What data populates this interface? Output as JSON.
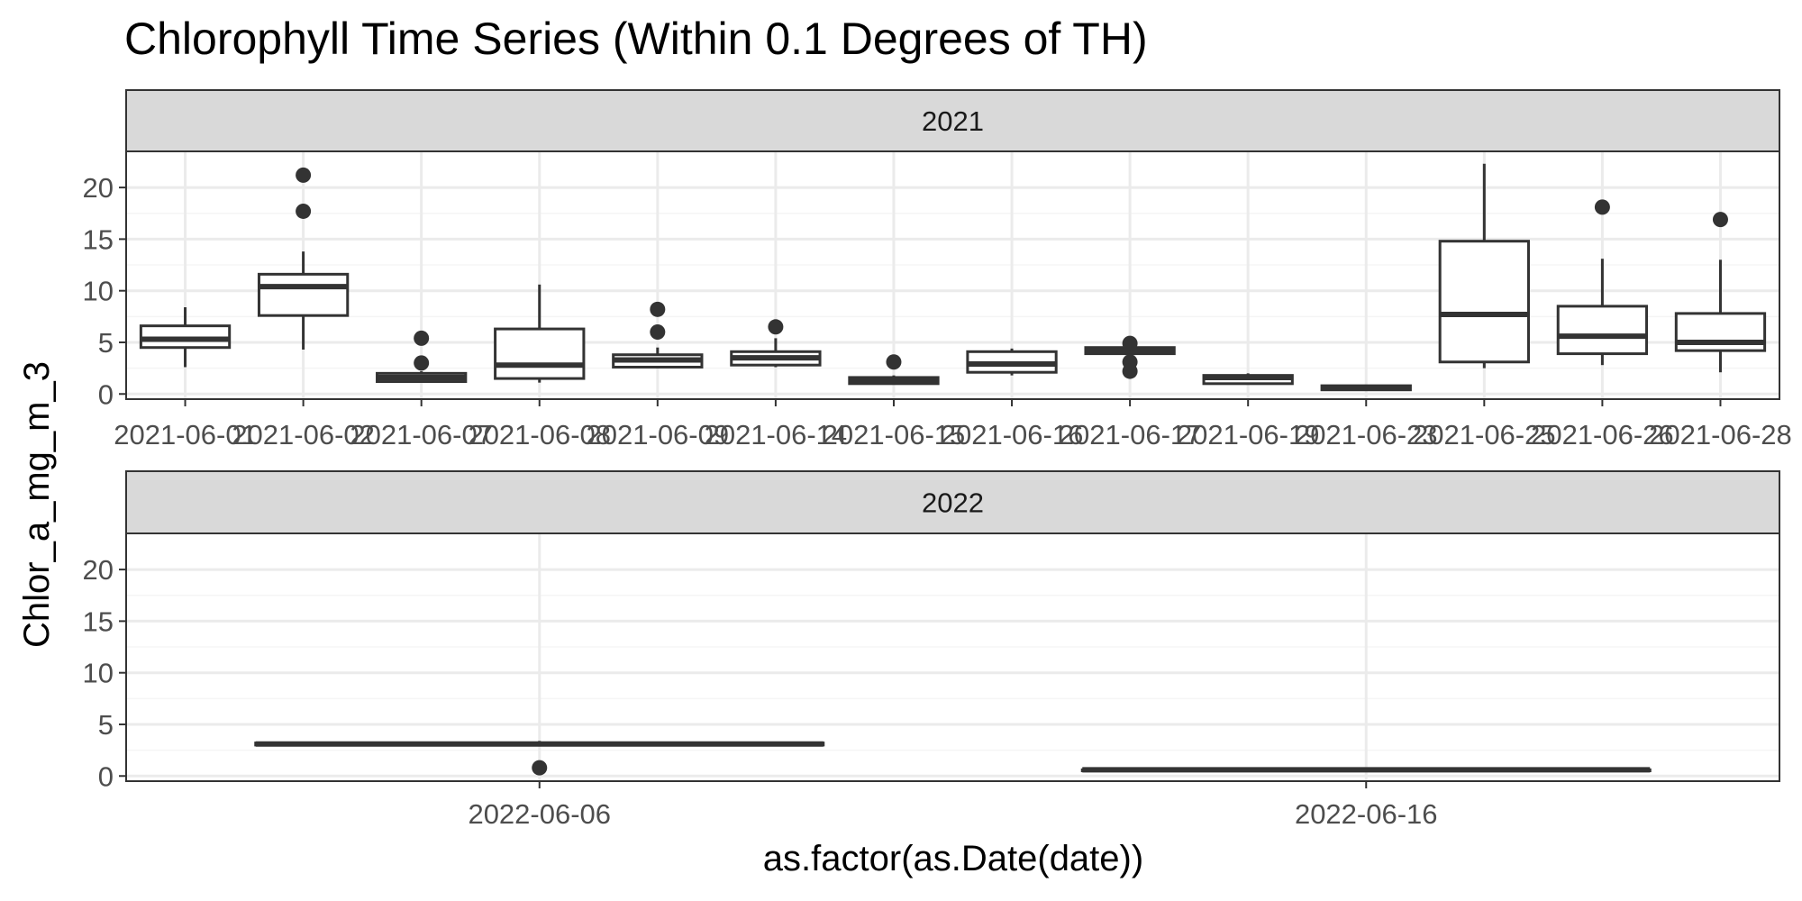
{
  "chart_data": {
    "type": "boxplot",
    "title": "Chlorophyll Time Series (Within 0.1 Degrees of TH)",
    "xlabel": "as.factor(as.Date(date))",
    "ylabel": "Chlor_a_mg_m_3",
    "ylim": [
      -0.5,
      23.5
    ],
    "yticks": [
      0,
      5,
      10,
      15,
      20
    ],
    "grid": true,
    "facet_layout": "rows",
    "facets": [
      {
        "label": "2021",
        "categories": [
          "2021-06-01",
          "2021-06-02",
          "2021-06-07",
          "2021-06-08",
          "2021-06-09",
          "2021-06-14",
          "2021-06-15",
          "2021-06-16",
          "2021-06-17",
          "2021-06-19",
          "2021-06-23",
          "2021-06-25",
          "2021-06-26",
          "2021-06-28"
        ],
        "boxes": [
          {
            "min": 2.6,
            "q1": 4.5,
            "median": 5.3,
            "q3": 6.6,
            "max": 8.4,
            "outliers": []
          },
          {
            "min": 4.3,
            "q1": 7.6,
            "median": 10.4,
            "q3": 11.6,
            "max": 13.8,
            "outliers": [
              21.2,
              17.7
            ]
          },
          {
            "min": 1.1,
            "q1": 1.2,
            "median": 1.6,
            "q3": 2.0,
            "max": 2.2,
            "outliers": [
              5.4,
              3.0
            ]
          },
          {
            "min": 1.1,
            "q1": 1.5,
            "median": 2.8,
            "q3": 6.3,
            "max": 10.6,
            "outliers": []
          },
          {
            "min": 2.5,
            "q1": 2.6,
            "median": 3.3,
            "q3": 3.8,
            "max": 4.5,
            "outliers": [
              8.2,
              6.0
            ]
          },
          {
            "min": 2.6,
            "q1": 2.8,
            "median": 3.5,
            "q3": 4.1,
            "max": 5.4,
            "outliers": [
              6.5
            ]
          },
          {
            "min": 0.9,
            "q1": 1.0,
            "median": 1.3,
            "q3": 1.6,
            "max": 1.8,
            "outliers": [
              3.1
            ]
          },
          {
            "min": 1.8,
            "q1": 2.1,
            "median": 2.9,
            "q3": 4.1,
            "max": 4.4,
            "outliers": []
          },
          {
            "min": 3.8,
            "q1": 3.9,
            "median": 4.2,
            "q3": 4.5,
            "max": 4.6,
            "outliers": [
              4.9,
              3.1,
              2.2
            ]
          },
          {
            "min": 1.0,
            "q1": 1.0,
            "median": 1.6,
            "q3": 1.8,
            "max": 2.0,
            "outliers": []
          },
          {
            "min": 0.4,
            "q1": 0.4,
            "median": 0.6,
            "q3": 0.8,
            "max": 0.9,
            "outliers": []
          },
          {
            "min": 2.5,
            "q1": 3.1,
            "median": 7.7,
            "q3": 14.8,
            "max": 22.3,
            "outliers": []
          },
          {
            "min": 2.8,
            "q1": 3.9,
            "median": 5.6,
            "q3": 8.5,
            "max": 13.1,
            "outliers": [
              18.1
            ]
          },
          {
            "min": 2.1,
            "q1": 4.2,
            "median": 5.0,
            "q3": 7.8,
            "max": 13.0,
            "outliers": [
              16.9
            ]
          }
        ]
      },
      {
        "label": "2022",
        "categories": [
          "2022-06-06",
          "2022-06-16"
        ],
        "boxes": [
          {
            "min": 3.0,
            "q1": 3.0,
            "median": 3.1,
            "q3": 3.2,
            "max": 3.4,
            "outliers": [
              0.8
            ]
          },
          {
            "min": 0.5,
            "q1": 0.5,
            "median": 0.6,
            "q3": 0.6,
            "max": 0.7,
            "outliers": []
          }
        ]
      }
    ]
  },
  "colors": {
    "box_line": "#333333",
    "box_fill": "#ffffff",
    "strip_fill": "#d9d9d9",
    "grid_major": "#ebebeb",
    "grid_minor": "#f5f5f5",
    "panel_border": "#333333",
    "tick_text": "#4d4d4d"
  }
}
